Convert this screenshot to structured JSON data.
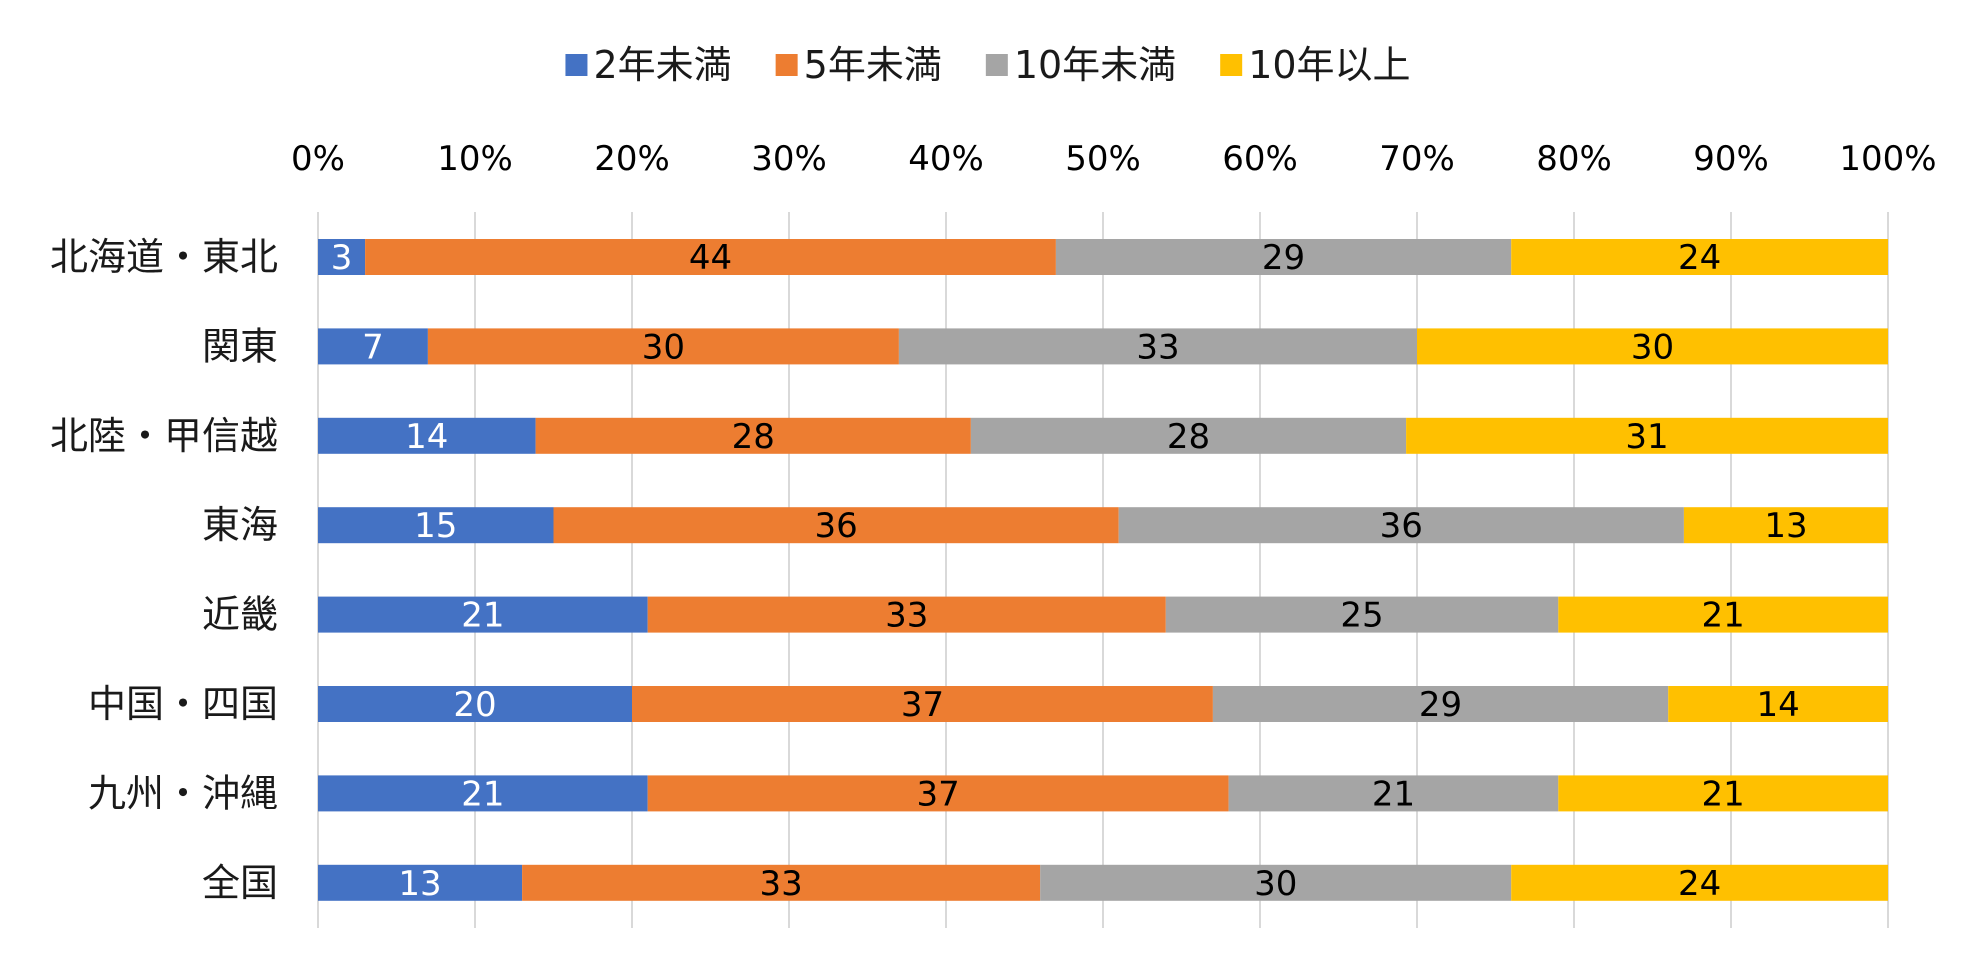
{
  "chart_data": {
    "type": "bar",
    "orientation": "horizontal",
    "stacked": "percent",
    "categories": [
      "北海道・東北",
      "関東",
      "北陸・甲信越",
      "東海",
      "近畿",
      "中国・四国",
      "九州・沖縄",
      "全国"
    ],
    "series": [
      {
        "name": "2年未満",
        "color": "#4472C4",
        "label_color": "#ffffff",
        "values": [
          3,
          7,
          14,
          15,
          21,
          20,
          21,
          13
        ]
      },
      {
        "name": "5年未満",
        "color": "#ED7D31",
        "label_color": "#000000",
        "values": [
          44,
          30,
          28,
          36,
          33,
          37,
          37,
          33
        ]
      },
      {
        "name": "10年未満",
        "color": "#A5A5A5",
        "label_color": "#000000",
        "values": [
          29,
          33,
          28,
          36,
          25,
          29,
          21,
          30
        ]
      },
      {
        "name": "10年以上",
        "color": "#FFC000",
        "label_color": "#000000",
        "values": [
          24,
          30,
          31,
          13,
          21,
          14,
          21,
          24
        ]
      }
    ],
    "xaxis": {
      "ticks": [
        "0%",
        "10%",
        "20%",
        "30%",
        "40%",
        "50%",
        "60%",
        "70%",
        "80%",
        "90%",
        "100%"
      ],
      "range": [
        0,
        100
      ],
      "position": "top"
    },
    "title": "",
    "xlabel": "",
    "ylabel": "",
    "grid": true,
    "legend": "top"
  }
}
